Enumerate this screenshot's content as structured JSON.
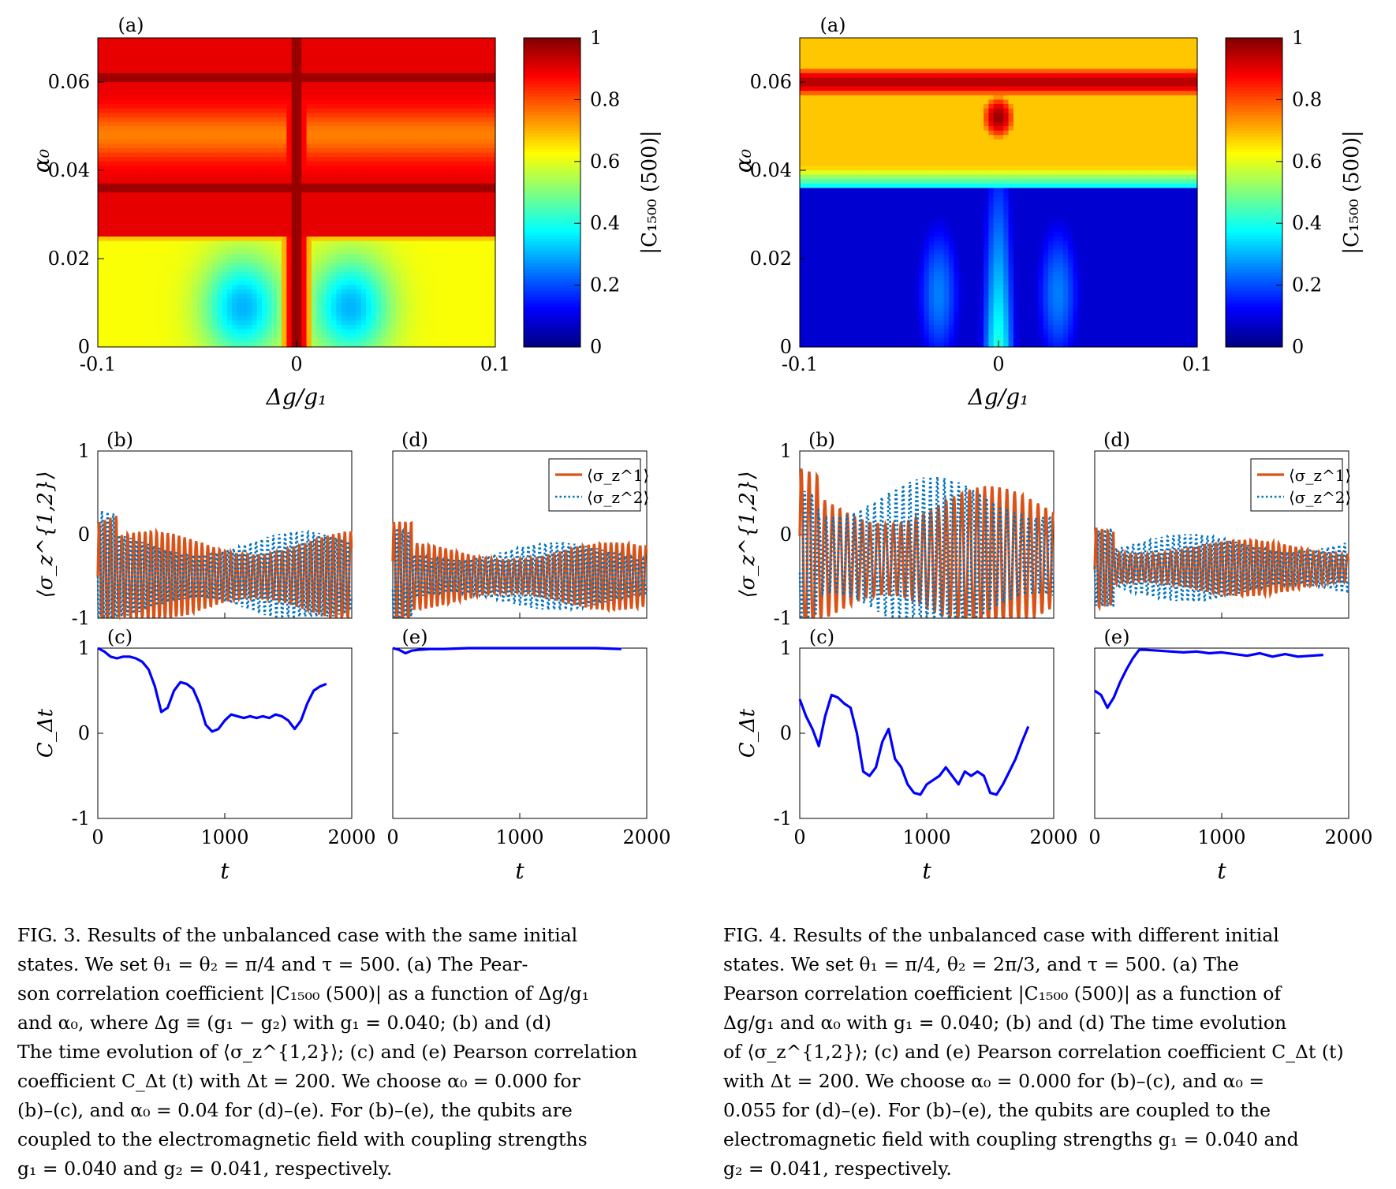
{
  "figures": [
    {
      "id": "fig3",
      "panel_labels": {
        "a": "(a)",
        "b": "(b)",
        "c": "(c)",
        "d": "(d)",
        "e": "(e)"
      },
      "caption_lines": [
        "FIG. 3. Results of the unbalanced case with the same initial",
        "states. We set θ₁ = θ₂ = π/4 and τ = 500. (a) The Pear-",
        "son correlation coefficient |C₁₅₀₀ (500)| as a function of Δg/g₁",
        "and α₀, where Δg ≡ (g₁ − g₂) with g₁ = 0.040; (b) and (d)",
        "The time evolution of ⟨σ_z^{1,2}⟩; (c) and (e) Pearson correlation",
        "coefficient C_Δt (t) with Δt = 200. We choose α₀ = 0.000 for",
        "(b)–(c), and α₀ = 0.04 for (d)–(e). For (b)–(e), the qubits are",
        "coupled to the electromagnetic field with coupling strengths",
        "g₁ = 0.040 and g₂ = 0.041, respectively."
      ]
    },
    {
      "id": "fig4",
      "panel_labels": {
        "a": "(a)",
        "b": "(b)",
        "c": "(c)",
        "d": "(d)",
        "e": "(e)"
      },
      "caption_lines": [
        "FIG. 4. Results of the unbalanced case with different initial",
        "states. We set θ₁ = π/4, θ₂ = 2π/3, and τ = 500. (a) The",
        "Pearson correlation coefficient |C₁₅₀₀ (500)| as a function of",
        "Δg/g₁ and α₀ with g₁ = 0.040; (b) and (d) The time evolution",
        "of ⟨σ_z^{1,2}⟩; (c) and (e) Pearson correlation coefficient C_Δt (t)",
        "with Δt = 200. We choose α₀ = 0.000 for (b)–(c), and α₀ =",
        "0.055 for (d)–(e). For (b)–(e), the qubits are coupled to the",
        "electromagnetic field with coupling strengths g₁ = 0.040 and",
        "g₂ = 0.041, respectively."
      ]
    }
  ],
  "chart_data": [
    {
      "type": "heatmap",
      "figure": "fig3",
      "panel": "(a)",
      "xlabel": "Δg/g₁",
      "ylabel": "α₀",
      "colorbar_label": "|C₁₅₀₀ (500)|",
      "xlim": [
        -0.1,
        0.1
      ],
      "ylim": [
        0,
        0.07
      ],
      "clim": [
        0,
        1
      ],
      "x_ticks": [
        "-0.1",
        "0",
        "0.1"
      ],
      "y_ticks": [
        "0",
        "0.02",
        "0.04",
        "0.06"
      ],
      "colorbar_ticks": [
        "0",
        "0.2",
        "0.4",
        "0.6",
        "0.8",
        "1"
      ],
      "colormap": "jet"
    },
    {
      "type": "line",
      "figure": "fig3",
      "panel": "(b)",
      "xlim": [
        0,
        2000
      ],
      "ylim": [
        -1,
        1
      ],
      "ylabel": "⟨σ_z^{1,2}⟩",
      "y_ticks": [
        "-1",
        "0",
        "1"
      ],
      "series": [
        {
          "name": "⟨σ_z^1⟩",
          "style": "solid",
          "color": "#d95319",
          "mean": -0.5,
          "amplitude": 0.4,
          "period": 45
        },
        {
          "name": "⟨σ_z^2⟩",
          "style": "dotted",
          "color": "#0072bd",
          "mean": -0.5,
          "amplitude": 0.4,
          "period": 45
        }
      ]
    },
    {
      "type": "line",
      "figure": "fig3",
      "panel": "(c)",
      "xlim": [
        0,
        2000
      ],
      "ylim": [
        -1,
        1
      ],
      "xlabel": "t",
      "ylabel": "C_Δt",
      "x_ticks": [
        "0",
        "1000",
        "2000"
      ],
      "y_ticks": [
        "-1",
        "0",
        "1"
      ],
      "series": [
        {
          "color": "#0000ff",
          "x": [
            0,
            50,
            100,
            150,
            200,
            250,
            300,
            350,
            400,
            450,
            500,
            550,
            600,
            650,
            700,
            750,
            800,
            850,
            900,
            950,
            1000,
            1050,
            1100,
            1150,
            1200,
            1250,
            1300,
            1350,
            1400,
            1450,
            1500,
            1550,
            1600,
            1650,
            1700,
            1750,
            1800
          ],
          "y": [
            1.0,
            0.96,
            0.9,
            0.88,
            0.9,
            0.9,
            0.88,
            0.84,
            0.75,
            0.55,
            0.25,
            0.3,
            0.5,
            0.6,
            0.58,
            0.52,
            0.35,
            0.1,
            0.02,
            0.05,
            0.15,
            0.22,
            0.2,
            0.18,
            0.2,
            0.18,
            0.2,
            0.18,
            0.22,
            0.2,
            0.15,
            0.05,
            0.15,
            0.35,
            0.5,
            0.55,
            0.58
          ]
        }
      ]
    },
    {
      "type": "line",
      "figure": "fig3",
      "panel": "(d)",
      "xlim": [
        0,
        2000
      ],
      "ylim": [
        -1,
        1
      ],
      "legend": [
        "⟨σ_z^1⟩",
        "⟨σ_z^2⟩"
      ],
      "legend_position": "top-right",
      "series": [
        {
          "name": "⟨σ_z^1⟩",
          "style": "solid",
          "color": "#d95319",
          "mean": -0.5,
          "amplitude": 0.3,
          "period": 45
        },
        {
          "name": "⟨σ_z^2⟩",
          "style": "dotted",
          "color": "#0072bd",
          "mean": -0.5,
          "amplitude": 0.3,
          "period": 45
        }
      ]
    },
    {
      "type": "line",
      "figure": "fig3",
      "panel": "(e)",
      "xlim": [
        0,
        2000
      ],
      "ylim": [
        -1,
        1
      ],
      "xlabel": "t",
      "x_ticks": [
        "0",
        "1000",
        "2000"
      ],
      "series": [
        {
          "color": "#0000ff",
          "x": [
            0,
            50,
            100,
            150,
            200,
            300,
            400,
            600,
            800,
            1000,
            1200,
            1400,
            1600,
            1800
          ],
          "y": [
            1.0,
            0.98,
            0.94,
            0.97,
            0.98,
            0.99,
            0.99,
            1.0,
            1.0,
            1.0,
            1.0,
            1.0,
            1.0,
            0.99
          ]
        }
      ]
    },
    {
      "type": "heatmap",
      "figure": "fig4",
      "panel": "(a)",
      "xlabel": "Δg/g₁",
      "ylabel": "α₀",
      "colorbar_label": "|C₁₅₀₀ (500)|",
      "xlim": [
        -0.1,
        0.1
      ],
      "ylim": [
        0,
        0.07
      ],
      "clim": [
        0,
        1
      ],
      "x_ticks": [
        "-0.1",
        "0",
        "0.1"
      ],
      "y_ticks": [
        "0",
        "0.02",
        "0.04",
        "0.06"
      ],
      "colorbar_ticks": [
        "0",
        "0.2",
        "0.4",
        "0.6",
        "0.8",
        "1"
      ],
      "colormap": "jet"
    },
    {
      "type": "line",
      "figure": "fig4",
      "panel": "(b)",
      "xlim": [
        0,
        2000
      ],
      "ylim": [
        -1,
        1
      ],
      "ylabel": "⟨σ_z^{1,2}⟩",
      "y_ticks": [
        "-1",
        "0",
        "1"
      ],
      "series": [
        {
          "name": "⟨σ_z^1⟩",
          "style": "solid",
          "color": "#d95319",
          "mean": -0.3,
          "amplitude": 0.65,
          "period": 60
        },
        {
          "name": "⟨σ_z^2⟩",
          "style": "dotted",
          "color": "#0072bd",
          "mean": -0.25,
          "amplitude": 0.7,
          "period": 55
        }
      ]
    },
    {
      "type": "line",
      "figure": "fig4",
      "panel": "(c)",
      "xlim": [
        0,
        2000
      ],
      "ylim": [
        -1,
        1
      ],
      "xlabel": "t",
      "ylabel": "C_Δt",
      "x_ticks": [
        "0",
        "1000",
        "2000"
      ],
      "y_ticks": [
        "-1",
        "0",
        "1"
      ],
      "series": [
        {
          "color": "#0000ff",
          "x": [
            0,
            50,
            100,
            150,
            200,
            250,
            300,
            350,
            400,
            450,
            500,
            550,
            600,
            650,
            700,
            750,
            800,
            850,
            900,
            950,
            1000,
            1050,
            1100,
            1150,
            1200,
            1250,
            1300,
            1350,
            1400,
            1450,
            1500,
            1550,
            1600,
            1650,
            1700,
            1750,
            1800
          ],
          "y": [
            0.4,
            0.2,
            0.05,
            -0.15,
            0.2,
            0.45,
            0.42,
            0.35,
            0.3,
            0.0,
            -0.45,
            -0.5,
            -0.4,
            -0.1,
            0.05,
            -0.3,
            -0.4,
            -0.6,
            -0.7,
            -0.72,
            -0.6,
            -0.55,
            -0.5,
            -0.4,
            -0.5,
            -0.6,
            -0.45,
            -0.5,
            -0.45,
            -0.5,
            -0.7,
            -0.72,
            -0.6,
            -0.45,
            -0.3,
            -0.1,
            0.08
          ]
        }
      ]
    },
    {
      "type": "line",
      "figure": "fig4",
      "panel": "(d)",
      "xlim": [
        0,
        2000
      ],
      "ylim": [
        -1,
        1
      ],
      "legend": [
        "⟨σ_z^1⟩",
        "⟨σ_z^2⟩"
      ],
      "legend_position": "top-right",
      "series": [
        {
          "name": "⟨σ_z^1⟩",
          "style": "solid",
          "color": "#d95319",
          "mean": -0.4,
          "amplitude": 0.25,
          "period": 45
        },
        {
          "name": "⟨σ_z^2⟩",
          "style": "dotted",
          "color": "#0072bd",
          "mean": -0.4,
          "amplitude": 0.3,
          "period": 45
        }
      ]
    },
    {
      "type": "line",
      "figure": "fig4",
      "panel": "(e)",
      "xlim": [
        0,
        2000
      ],
      "ylim": [
        -1,
        1
      ],
      "xlabel": "t",
      "x_ticks": [
        "0",
        "1000",
        "2000"
      ],
      "series": [
        {
          "color": "#0000ff",
          "x": [
            0,
            50,
            100,
            150,
            200,
            250,
            300,
            350,
            400,
            500,
            600,
            700,
            800,
            900,
            1000,
            1100,
            1200,
            1300,
            1400,
            1500,
            1600,
            1700,
            1800
          ],
          "y": [
            0.5,
            0.45,
            0.3,
            0.42,
            0.6,
            0.75,
            0.88,
            0.98,
            0.98,
            0.97,
            0.96,
            0.95,
            0.96,
            0.94,
            0.95,
            0.93,
            0.91,
            0.94,
            0.9,
            0.93,
            0.9,
            0.91,
            0.92
          ]
        }
      ]
    }
  ]
}
